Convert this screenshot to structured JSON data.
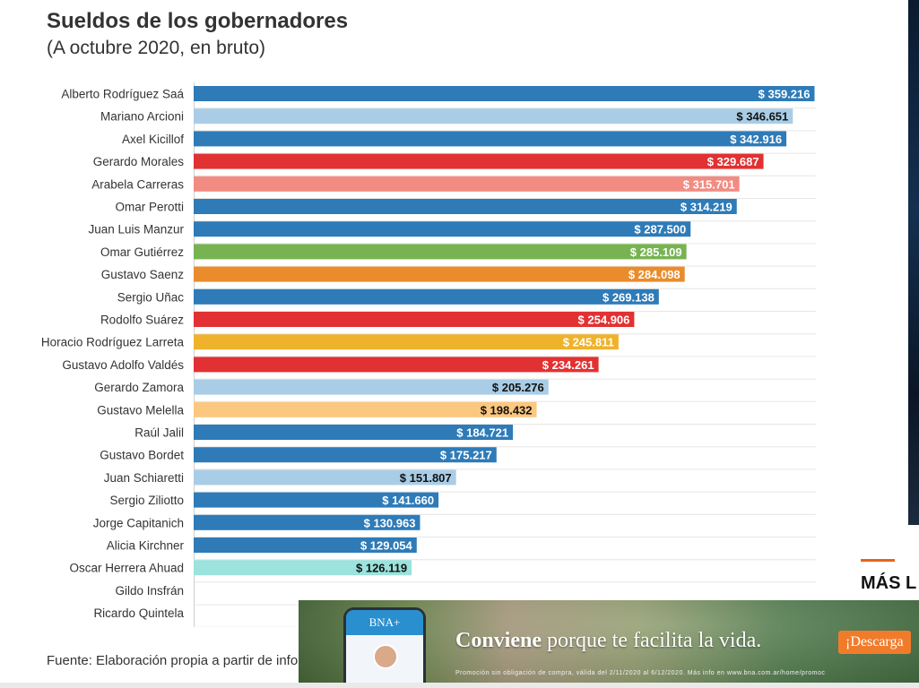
{
  "header": {
    "title": "Sueldos de los gobernadores",
    "subtitle": "(A octubre 2020, en bruto)"
  },
  "footer": {
    "source": "Fuente: Elaboración propia a partir de infor"
  },
  "sidebar": {
    "heading": "MÁS L"
  },
  "ad": {
    "phone_brand": "BNA+",
    "slogan_bold": "Conviene",
    "slogan_rest": " porque te facilita la vida.",
    "cta": "¡Descarga",
    "fine_print": "Promoción sin obligación de compra, válida del 2/11/2020 al 6/12/2020. Más info en www.bna.com.ar/home/promoc"
  },
  "chart_data": {
    "type": "bar",
    "orientation": "horizontal",
    "xlim": [
      0,
      360000
    ],
    "grid": true,
    "legend": "none",
    "categories": [
      "Alberto Rodríguez Saá",
      "Mariano Arcioni",
      "Axel Kicillof",
      "Gerardo Morales",
      "Arabela Carreras",
      "Omar Perotti",
      "Juan Luis Manzur",
      "Omar Gutiérrez",
      "Gustavo Saenz",
      "Sergio Uñac",
      "Rodolfo Suárez",
      "Horacio Rodríguez Larreta",
      "Gustavo Adolfo Valdés",
      "Gerardo Zamora",
      "Gustavo Melella",
      "Raúl Jalil",
      "Gustavo Bordet",
      "Juan Schiaretti",
      "Sergio Ziliotto",
      "Jorge Capitanich",
      "Alicia Kirchner",
      "Oscar Herrera Ahuad",
      "Gildo Insfrán",
      "Ricardo Quintela"
    ],
    "values": [
      359216,
      346651,
      342916,
      329687,
      315701,
      314219,
      287500,
      285109,
      284098,
      269138,
      254906,
      245811,
      234261,
      205276,
      198432,
      184721,
      175217,
      151807,
      141660,
      130963,
      129054,
      126119,
      null,
      null
    ],
    "value_labels": [
      "$ 359.216",
      "$ 346.651",
      "$ 342.916",
      "$ 329.687",
      "$ 315.701",
      "$ 314.219",
      "$ 287.500",
      "$ 285.109",
      "$ 284.098",
      "$ 269.138",
      "$ 254.906",
      "$ 245.811",
      "$ 234.261",
      "$ 205.276",
      "$ 198.432",
      "$ 184.721",
      "$ 175.217",
      "$ 151.807",
      "$ 141.660",
      "$ 130.963",
      "$ 129.054",
      "$ 126.119",
      "",
      ""
    ],
    "colors": [
      "#2e7bb8",
      "#a9cde6",
      "#2e7bb8",
      "#e23132",
      "#f28b82",
      "#2e7bb8",
      "#2e7bb8",
      "#78b352",
      "#ea8c2c",
      "#2e7bb8",
      "#e23132",
      "#efb22c",
      "#e23132",
      "#a9cde6",
      "#fcc77e",
      "#2e7bb8",
      "#2e7bb8",
      "#a9cde6",
      "#2e7bb8",
      "#2e7bb8",
      "#2e7bb8",
      "#9be3dc",
      "#2e7bb8",
      "#2e7bb8"
    ],
    "label_dark": [
      false,
      true,
      false,
      false,
      false,
      false,
      false,
      false,
      false,
      false,
      false,
      false,
      false,
      true,
      true,
      false,
      false,
      true,
      false,
      false,
      false,
      true,
      false,
      false
    ]
  }
}
